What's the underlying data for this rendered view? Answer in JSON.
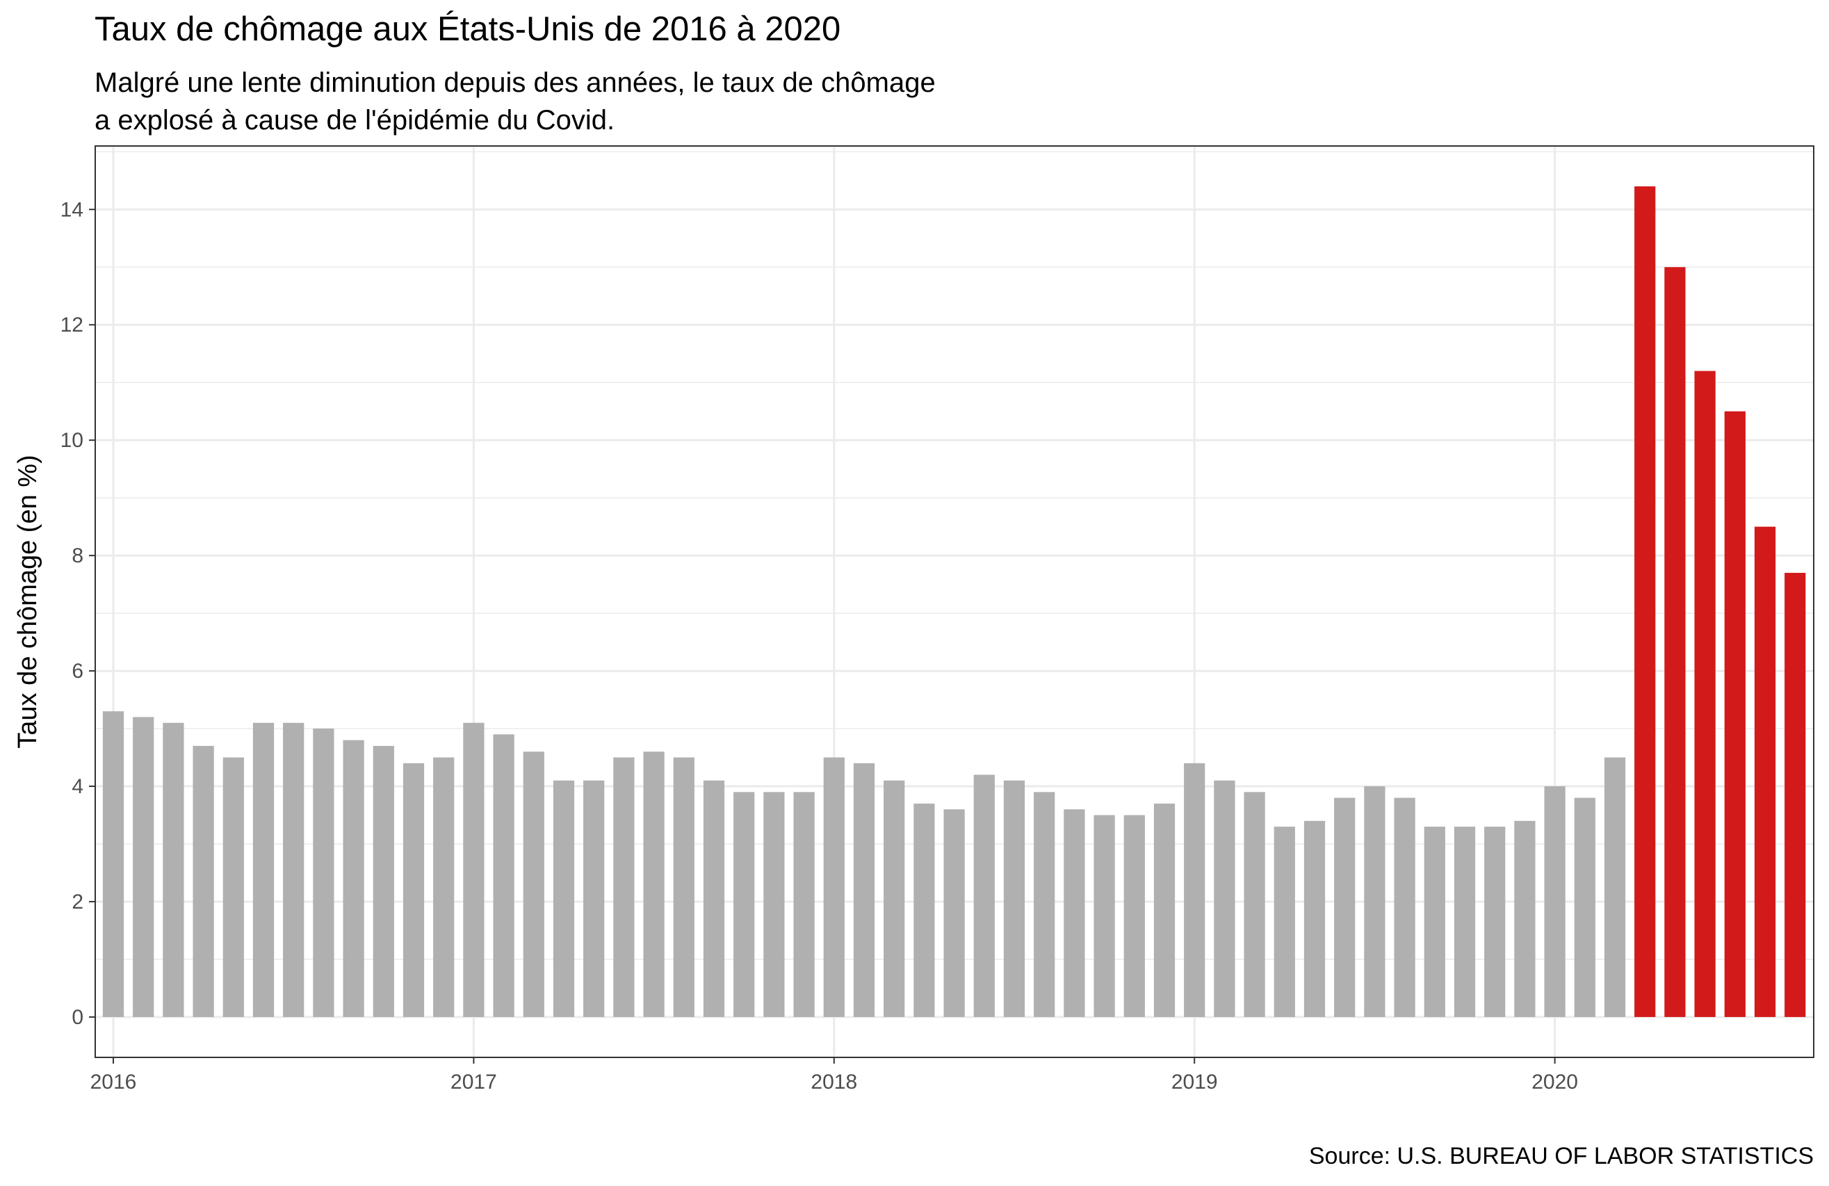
{
  "title": "Taux de chômage aux États-Unis de 2016 à 2020",
  "subtitle_lines": [
    "Malgré une lente diminution depuis des années, le taux de chômage",
    "a explosé à cause de l'épidémie du Covid."
  ],
  "caption": "Source: U.S. BUREAU OF LABOR STATISTICS",
  "colors": {
    "normal": "#b0b0b0",
    "covid": "#d31a1a",
    "grid": "#ebebeb",
    "panel_border": "#333333"
  },
  "chart_data": {
    "type": "bar",
    "ylabel": "Taux de chômage (en %)",
    "xlabel": "",
    "ylim": [
      -0.7,
      15.1
    ],
    "yticks": [
      0,
      2,
      4,
      6,
      8,
      10,
      12,
      14
    ],
    "xticks": [
      "2016",
      "2017",
      "2018",
      "2019",
      "2020"
    ],
    "grid": true,
    "legend": "none",
    "categories": [
      "2016-01",
      "2016-02",
      "2016-03",
      "2016-04",
      "2016-05",
      "2016-06",
      "2016-07",
      "2016-08",
      "2016-09",
      "2016-10",
      "2016-11",
      "2016-12",
      "2017-01",
      "2017-02",
      "2017-03",
      "2017-04",
      "2017-05",
      "2017-06",
      "2017-07",
      "2017-08",
      "2017-09",
      "2017-10",
      "2017-11",
      "2017-12",
      "2018-01",
      "2018-02",
      "2018-03",
      "2018-04",
      "2018-05",
      "2018-06",
      "2018-07",
      "2018-08",
      "2018-09",
      "2018-10",
      "2018-11",
      "2018-12",
      "2019-01",
      "2019-02",
      "2019-03",
      "2019-04",
      "2019-05",
      "2019-06",
      "2019-07",
      "2019-08",
      "2019-09",
      "2019-10",
      "2019-11",
      "2019-12",
      "2020-01",
      "2020-02",
      "2020-03",
      "2020-04",
      "2020-05",
      "2020-06",
      "2020-07",
      "2020-08",
      "2020-09"
    ],
    "values": [
      5.3,
      5.2,
      5.1,
      4.7,
      4.5,
      5.1,
      5.1,
      5.0,
      4.8,
      4.7,
      4.4,
      4.5,
      5.1,
      4.9,
      4.6,
      4.1,
      4.1,
      4.5,
      4.6,
      4.5,
      4.1,
      3.9,
      3.9,
      3.9,
      4.5,
      4.4,
      4.1,
      3.7,
      3.6,
      4.2,
      4.1,
      3.9,
      3.6,
      3.5,
      3.5,
      3.7,
      4.4,
      4.1,
      3.9,
      3.3,
      3.4,
      3.8,
      4.0,
      3.8,
      3.3,
      3.3,
      3.3,
      3.4,
      4.0,
      3.8,
      4.5,
      14.4,
      13.0,
      11.2,
      10.5,
      8.5,
      7.7
    ],
    "highlight_from": "2020-04"
  }
}
